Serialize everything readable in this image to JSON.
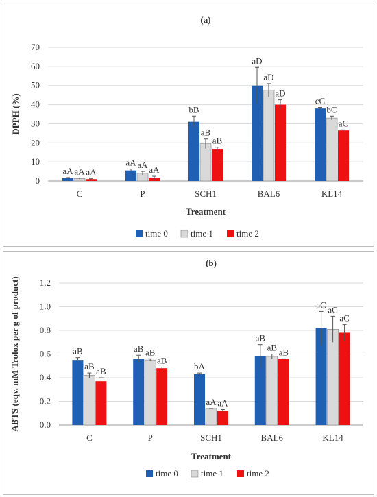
{
  "chart_data": [
    {
      "type": "bar",
      "title": "(a)",
      "xlabel": "Treatment",
      "ylabel": "DPPH (%)",
      "ylim": [
        0,
        70
      ],
      "yticks": [
        0,
        10,
        20,
        30,
        40,
        50,
        60,
        70
      ],
      "grid": true,
      "legend": "bottom",
      "categories": [
        "C",
        "P",
        "SCH1",
        "BAL6",
        "KL14"
      ],
      "series": [
        {
          "name": "time 0",
          "color": "#1f5fb4",
          "values": [
            1.5,
            5.5,
            31,
            50,
            38
          ],
          "errors": [
            0.3,
            0.8,
            3,
            9.5,
            0.6
          ],
          "labels": [
            "aA",
            "aA",
            "bB",
            "aD",
            "cC"
          ]
        },
        {
          "name": "time 1",
          "color": "#d9d9d9",
          "values": [
            1.3,
            4,
            19.5,
            47.5,
            33
          ],
          "errors": [
            0.3,
            1,
            2.5,
            3.5,
            1
          ],
          "labels": [
            "aA",
            "aA",
            "aB",
            "aD",
            "bC"
          ]
        },
        {
          "name": "time 2",
          "color": "#ee1111",
          "values": [
            1,
            1.5,
            16.5,
            40,
            26.5
          ],
          "errors": [
            0.2,
            1,
            1.2,
            2.5,
            0.3
          ],
          "labels": [
            "aA",
            "aA",
            "aB",
            "aD",
            "aC"
          ]
        }
      ]
    },
    {
      "type": "bar",
      "title": "(b)",
      "xlabel": "Treatment",
      "ylabel": "ABTS (eqv. mM Trolox per g of product)",
      "ylim": [
        0,
        1.2
      ],
      "yticks": [
        "0.0",
        "0.2",
        "0.4",
        "0.6",
        "0.8",
        "1.0",
        "1.2"
      ],
      "grid": true,
      "legend": "bottom",
      "categories": [
        "C",
        "P",
        "SCH1",
        "BAL6",
        "KL14"
      ],
      "series": [
        {
          "name": "time 0",
          "color": "#1f5fb4",
          "values": [
            0.55,
            0.56,
            0.43,
            0.58,
            0.82
          ],
          "errors": [
            0.02,
            0.03,
            0.01,
            0.1,
            0.14
          ],
          "labels": [
            "aB",
            "aB",
            "bA",
            "aB",
            "aC"
          ]
        },
        {
          "name": "time 1",
          "color": "#d9d9d9",
          "values": [
            0.42,
            0.55,
            0.14,
            0.58,
            0.81
          ],
          "errors": [
            0.02,
            0.01,
            0.0,
            0.02,
            0.11
          ],
          "labels": [
            "aB",
            "aB",
            "aA",
            "aB",
            "aC"
          ]
        },
        {
          "name": "time 2",
          "color": "#ee1111",
          "values": [
            0.37,
            0.48,
            0.12,
            0.56,
            0.78
          ],
          "errors": [
            0.03,
            0.01,
            0.01,
            0.0,
            0.07
          ],
          "labels": [
            "aB",
            "aB",
            "aA",
            "aB",
            "aC"
          ]
        }
      ]
    }
  ]
}
